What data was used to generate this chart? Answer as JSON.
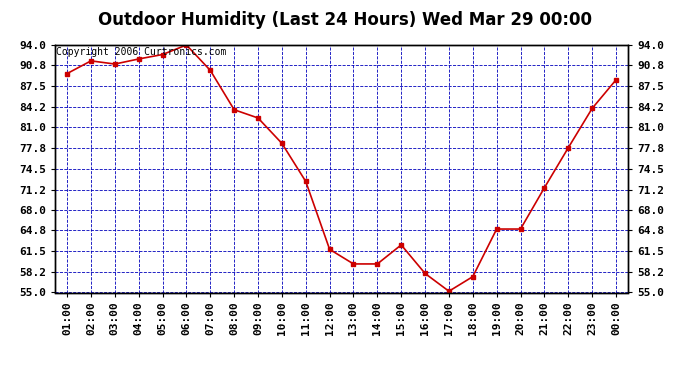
{
  "title": "Outdoor Humidity (Last 24 Hours) Wed Mar 29 00:00",
  "copyright": "Copyright 2006 Curtronics.com",
  "x_labels": [
    "01:00",
    "02:00",
    "03:00",
    "04:00",
    "05:00",
    "06:00",
    "07:00",
    "08:00",
    "09:00",
    "10:00",
    "11:00",
    "12:00",
    "13:00",
    "14:00",
    "15:00",
    "16:00",
    "17:00",
    "18:00",
    "19:00",
    "20:00",
    "21:00",
    "22:00",
    "23:00",
    "00:00"
  ],
  "y_values": [
    89.5,
    91.5,
    91.0,
    91.8,
    92.5,
    94.0,
    90.0,
    83.8,
    82.5,
    78.5,
    72.5,
    61.8,
    59.5,
    59.5,
    62.5,
    58.0,
    55.2,
    57.5,
    65.0,
    65.0,
    71.5,
    77.8,
    84.0,
    88.5
  ],
  "line_color": "#cc0000",
  "marker": "s",
  "marker_size": 3,
  "bg_color": "#ffffff",
  "plot_bg_color": "#ffffff",
  "grid_color": "#0000bb",
  "border_color": "#000000",
  "ylim_min": 55.0,
  "ylim_max": 94.0,
  "y_ticks": [
    55.0,
    58.2,
    61.5,
    64.8,
    68.0,
    71.2,
    74.5,
    77.8,
    81.0,
    84.2,
    87.5,
    90.8,
    94.0
  ],
  "title_fontsize": 12,
  "copyright_fontsize": 7,
  "tick_fontsize": 8
}
